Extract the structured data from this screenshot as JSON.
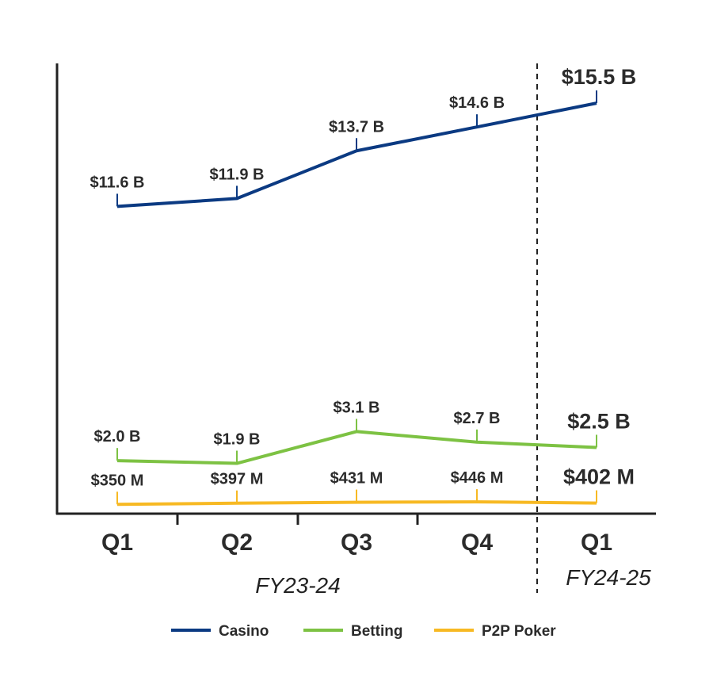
{
  "chart_data": {
    "type": "line",
    "categories": [
      "Q1",
      "Q2",
      "Q3",
      "Q4",
      "Q1"
    ],
    "groups": [
      {
        "label": "FY23-24",
        "categories": [
          "Q1",
          "Q2",
          "Q3",
          "Q4"
        ]
      },
      {
        "label": "FY24-25",
        "categories": [
          "Q1"
        ]
      }
    ],
    "ylim": [
      0,
      17
    ],
    "grid": false,
    "legend_position": "bottom",
    "series": [
      {
        "name": "Casino",
        "color": "#0b3a82",
        "values": [
          11.6,
          11.9,
          13.7,
          14.6,
          15.5
        ],
        "labels": [
          "$11.6 B",
          "$11.9 B",
          "$13.7 B",
          "$14.6 B",
          "$15.5 B"
        ]
      },
      {
        "name": "Betting",
        "color": "#7dc243",
        "values": [
          2.0,
          1.9,
          3.1,
          2.7,
          2.5
        ],
        "labels": [
          "$2.0 B",
          "$1.9 B",
          "$3.1 B",
          "$2.7 B",
          "$2.5 B"
        ]
      },
      {
        "name": "P2P Poker",
        "color": "#f7b923",
        "values": [
          0.35,
          0.397,
          0.431,
          0.446,
          0.402
        ],
        "labels": [
          "$350 M",
          "$397 M",
          "$431 M",
          "$446 M",
          "$402 M"
        ]
      }
    ]
  }
}
